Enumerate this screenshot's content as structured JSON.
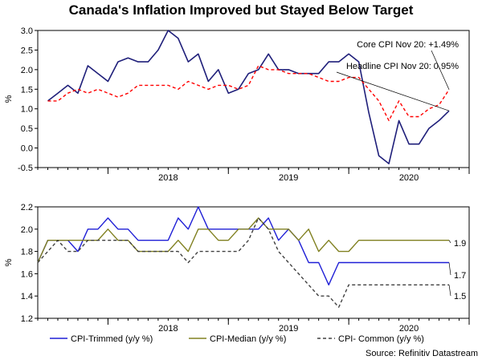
{
  "title": "Canada's Inflation Improved but Stayed Below Target",
  "source": "Source: Refinitiv Datastream",
  "chart_data": [
    {
      "type": "line",
      "ylabel": "%",
      "ylim": [
        -0.5,
        3.0
      ],
      "yticks": [
        "3.0",
        "2.5",
        "2.0",
        "1.5",
        "1.0",
        "0.5",
        "0.0",
        "-0.5"
      ],
      "ytick_values": [
        3.0,
        2.5,
        2.0,
        1.5,
        1.0,
        0.5,
        0.0,
        -0.5
      ],
      "x_range": [
        "2017-06",
        "2021-01"
      ],
      "year_labels": [
        {
          "text": "2018",
          "at": "2018-07"
        },
        {
          "text": "2019",
          "at": "2019-07"
        },
        {
          "text": "2020",
          "at": "2020-07"
        }
      ],
      "grid": false,
      "annotations": [
        {
          "text": "Core CPI Nov 20: +1.49%",
          "series": "core"
        },
        {
          "text": "Headline CPI Nov 20: 0.95%",
          "series": "headline"
        }
      ],
      "series": [
        {
          "key": "headline",
          "color": "#1f1f7a",
          "dash": "solid",
          "x": [
            "2017-07",
            "2017-08",
            "2017-09",
            "2017-10",
            "2017-11",
            "2017-12",
            "2018-01",
            "2018-02",
            "2018-03",
            "2018-04",
            "2018-05",
            "2018-06",
            "2018-07",
            "2018-08",
            "2018-09",
            "2018-10",
            "2018-11",
            "2018-12",
            "2019-01",
            "2019-02",
            "2019-03",
            "2019-04",
            "2019-05",
            "2019-06",
            "2019-07",
            "2019-08",
            "2019-09",
            "2019-10",
            "2019-11",
            "2019-12",
            "2020-01",
            "2020-02",
            "2020-03",
            "2020-04",
            "2020-05",
            "2020-06",
            "2020-07",
            "2020-08",
            "2020-09",
            "2020-10",
            "2020-11"
          ],
          "values": [
            1.2,
            1.4,
            1.6,
            1.4,
            2.1,
            1.9,
            1.7,
            2.2,
            2.3,
            2.2,
            2.2,
            2.5,
            3.0,
            2.8,
            2.2,
            2.4,
            1.7,
            2.0,
            1.4,
            1.5,
            1.9,
            2.0,
            2.4,
            2.0,
            2.0,
            1.9,
            1.9,
            1.9,
            2.2,
            2.2,
            2.4,
            2.2,
            0.9,
            -0.2,
            -0.4,
            0.7,
            0.1,
            0.1,
            0.5,
            0.7,
            0.95
          ]
        },
        {
          "key": "core",
          "color": "#ff0000",
          "dash": "dashed",
          "x": [
            "2017-07",
            "2017-08",
            "2017-09",
            "2017-10",
            "2017-11",
            "2017-12",
            "2018-01",
            "2018-02",
            "2018-03",
            "2018-04",
            "2018-05",
            "2018-06",
            "2018-07",
            "2018-08",
            "2018-09",
            "2018-10",
            "2018-11",
            "2018-12",
            "2019-01",
            "2019-02",
            "2019-03",
            "2019-04",
            "2019-05",
            "2019-06",
            "2019-07",
            "2019-08",
            "2019-09",
            "2019-10",
            "2019-11",
            "2019-12",
            "2020-01",
            "2020-02",
            "2020-03",
            "2020-04",
            "2020-05",
            "2020-06",
            "2020-07",
            "2020-08",
            "2020-09",
            "2020-10",
            "2020-11"
          ],
          "values": [
            1.2,
            1.2,
            1.4,
            1.5,
            1.4,
            1.5,
            1.4,
            1.3,
            1.4,
            1.6,
            1.6,
            1.6,
            1.6,
            1.5,
            1.7,
            1.6,
            1.5,
            1.6,
            1.6,
            1.5,
            1.6,
            2.1,
            2.0,
            2.0,
            1.9,
            1.9,
            1.9,
            1.8,
            1.7,
            1.7,
            1.8,
            1.8,
            1.5,
            1.2,
            0.7,
            1.2,
            0.8,
            0.8,
            1.0,
            1.1,
            1.49
          ]
        }
      ]
    },
    {
      "type": "line",
      "ylabel": "%",
      "ylim": [
        1.2,
        2.2
      ],
      "yticks": [
        "2.2",
        "2.0",
        "1.8",
        "1.6",
        "1.4",
        "1.2"
      ],
      "ytick_values": [
        2.2,
        2.0,
        1.8,
        1.6,
        1.4,
        1.2
      ],
      "x_range": [
        "2017-06",
        "2021-01"
      ],
      "year_labels": [
        {
          "text": "2018",
          "at": "2018-07"
        },
        {
          "text": "2019",
          "at": "2019-07"
        },
        {
          "text": "2020",
          "at": "2020-07"
        }
      ],
      "grid": false,
      "end_labels": [
        {
          "text": "1.9",
          "series": "median"
        },
        {
          "text": "1.7",
          "series": "trimmed"
        },
        {
          "text": "1.5",
          "series": "common"
        }
      ],
      "series": [
        {
          "key": "trimmed",
          "name": "CPI-Trimmed (y/y %)",
          "color": "#1f1fd6",
          "dash": "solid",
          "x": [
            "2017-06",
            "2017-07",
            "2017-08",
            "2017-09",
            "2017-10",
            "2017-11",
            "2017-12",
            "2018-01",
            "2018-02",
            "2018-03",
            "2018-04",
            "2018-05",
            "2018-06",
            "2018-07",
            "2018-08",
            "2018-09",
            "2018-10",
            "2018-11",
            "2018-12",
            "2019-01",
            "2019-02",
            "2019-03",
            "2019-04",
            "2019-05",
            "2019-06",
            "2019-07",
            "2019-08",
            "2019-09",
            "2019-10",
            "2019-11",
            "2019-12",
            "2020-01",
            "2020-02",
            "2020-03",
            "2020-04",
            "2020-05",
            "2020-06",
            "2020-07",
            "2020-08",
            "2020-09",
            "2020-10",
            "2020-11"
          ],
          "values": [
            1.7,
            1.9,
            1.9,
            1.9,
            1.8,
            2.0,
            2.0,
            2.1,
            2.0,
            2.0,
            1.9,
            1.9,
            1.9,
            1.9,
            2.1,
            2.0,
            2.2,
            2.0,
            2.0,
            2.0,
            2.0,
            2.0,
            2.0,
            2.1,
            1.9,
            2.0,
            1.9,
            1.7,
            1.7,
            1.5,
            1.7,
            1.7,
            1.7,
            1.7,
            1.7,
            1.7,
            1.7,
            1.7,
            1.7,
            1.7,
            1.7,
            1.7
          ]
        },
        {
          "key": "median",
          "name": "CPI-Median (y/y %)",
          "color": "#808020",
          "dash": "solid",
          "x": [
            "2017-06",
            "2017-07",
            "2017-08",
            "2017-09",
            "2017-10",
            "2017-11",
            "2017-12",
            "2018-01",
            "2018-02",
            "2018-03",
            "2018-04",
            "2018-05",
            "2018-06",
            "2018-07",
            "2018-08",
            "2018-09",
            "2018-10",
            "2018-11",
            "2018-12",
            "2019-01",
            "2019-02",
            "2019-03",
            "2019-04",
            "2019-05",
            "2019-06",
            "2019-07",
            "2019-08",
            "2019-09",
            "2019-10",
            "2019-11",
            "2019-12",
            "2020-01",
            "2020-02",
            "2020-03",
            "2020-04",
            "2020-05",
            "2020-06",
            "2020-07",
            "2020-08",
            "2020-09",
            "2020-10",
            "2020-11"
          ],
          "values": [
            1.7,
            1.9,
            1.9,
            1.9,
            1.9,
            1.9,
            1.9,
            2.0,
            1.9,
            1.9,
            1.8,
            1.8,
            1.8,
            1.8,
            1.9,
            1.8,
            2.0,
            2.0,
            1.9,
            1.9,
            2.0,
            2.0,
            2.1,
            2.0,
            2.0,
            2.0,
            1.9,
            2.0,
            1.8,
            1.9,
            1.8,
            1.8,
            1.9,
            1.9,
            1.9,
            1.9,
            1.9,
            1.9,
            1.9,
            1.9,
            1.9,
            1.9
          ]
        },
        {
          "key": "common",
          "name": "CPI- Common (y/y %)",
          "color": "#404040",
          "dash": "dashed",
          "x": [
            "2017-06",
            "2017-07",
            "2017-08",
            "2017-09",
            "2017-10",
            "2017-11",
            "2017-12",
            "2018-01",
            "2018-02",
            "2018-03",
            "2018-04",
            "2018-05",
            "2018-06",
            "2018-07",
            "2018-08",
            "2018-09",
            "2018-10",
            "2018-11",
            "2018-12",
            "2019-01",
            "2019-02",
            "2019-03",
            "2019-04",
            "2019-05",
            "2019-06",
            "2019-07",
            "2019-08",
            "2019-09",
            "2019-10",
            "2019-11",
            "2019-12",
            "2020-01",
            "2020-02",
            "2020-03",
            "2020-04",
            "2020-05",
            "2020-06",
            "2020-07",
            "2020-08",
            "2020-09",
            "2020-10",
            "2020-11"
          ],
          "values": [
            1.7,
            1.8,
            1.9,
            1.8,
            1.8,
            1.9,
            1.9,
            1.9,
            1.9,
            1.9,
            1.8,
            1.8,
            1.8,
            1.8,
            1.8,
            1.7,
            1.8,
            1.8,
            1.8,
            1.8,
            1.8,
            1.9,
            2.1,
            2.0,
            1.8,
            1.7,
            1.6,
            1.5,
            1.4,
            1.4,
            1.3,
            1.5,
            1.5,
            1.5,
            1.5,
            1.5,
            1.5,
            1.5,
            1.5,
            1.5,
            1.5,
            1.5
          ]
        }
      ]
    }
  ]
}
